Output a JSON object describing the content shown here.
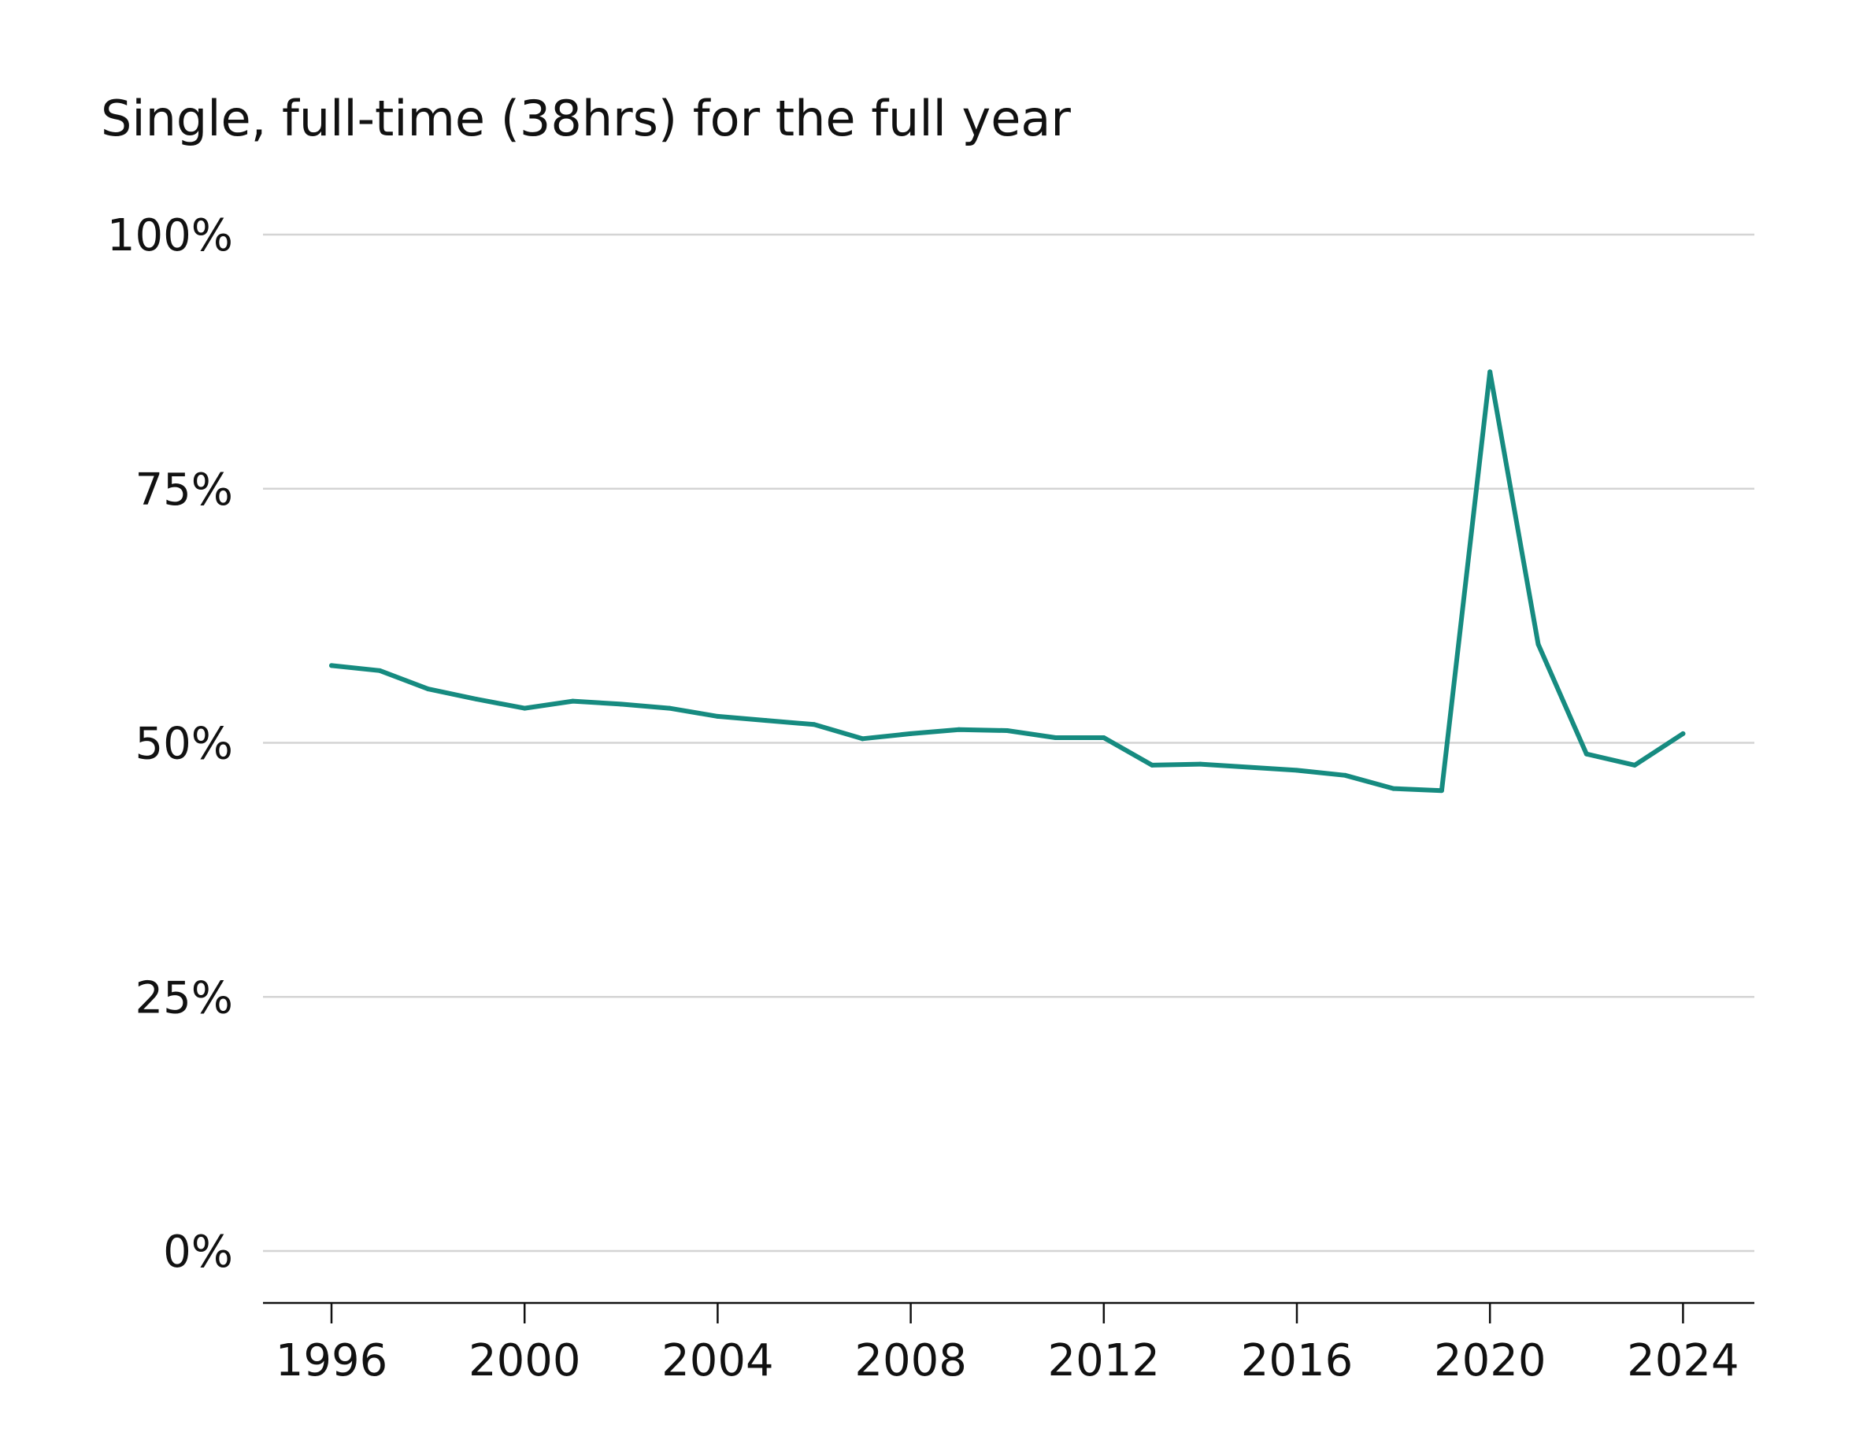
{
  "chart_data": {
    "type": "line",
    "title": "Single, full-time (38hrs) for the full year",
    "xlabel": "",
    "ylabel": "",
    "x": [
      1996,
      1997,
      1998,
      1999,
      2000,
      2001,
      2002,
      2003,
      2004,
      2005,
      2006,
      2007,
      2008,
      2009,
      2010,
      2011,
      2012,
      2013,
      2014,
      2015,
      2016,
      2017,
      2018,
      2019,
      2020,
      2021,
      2022,
      2023,
      2024
    ],
    "series": [
      {
        "values": [
          57.6,
          57.1,
          55.3,
          54.3,
          53.4,
          54.1,
          53.8,
          53.4,
          52.6,
          52.2,
          51.8,
          50.4,
          50.9,
          51.3,
          51.2,
          50.5,
          50.5,
          47.8,
          47.9,
          47.6,
          47.3,
          46.8,
          45.5,
          45.3,
          86.5,
          59.7,
          48.9,
          47.8,
          50.9
        ],
        "color": "#168b80"
      }
    ],
    "xlim": [
      1994.6,
      2025.4
    ],
    "ylim": [
      0,
      100
    ],
    "x_ticks": [
      1996,
      2000,
      2004,
      2008,
      2012,
      2016,
      2020,
      2024
    ],
    "x_tick_labels": [
      "1996",
      "2000",
      "2004",
      "2008",
      "2012",
      "2016",
      "2020",
      "2024"
    ],
    "y_ticks": [
      0,
      25,
      50,
      75,
      100
    ],
    "y_tick_labels": [
      "0%",
      "25%",
      "50%",
      "75%",
      "100%"
    ],
    "grid": true,
    "legend": "none"
  }
}
